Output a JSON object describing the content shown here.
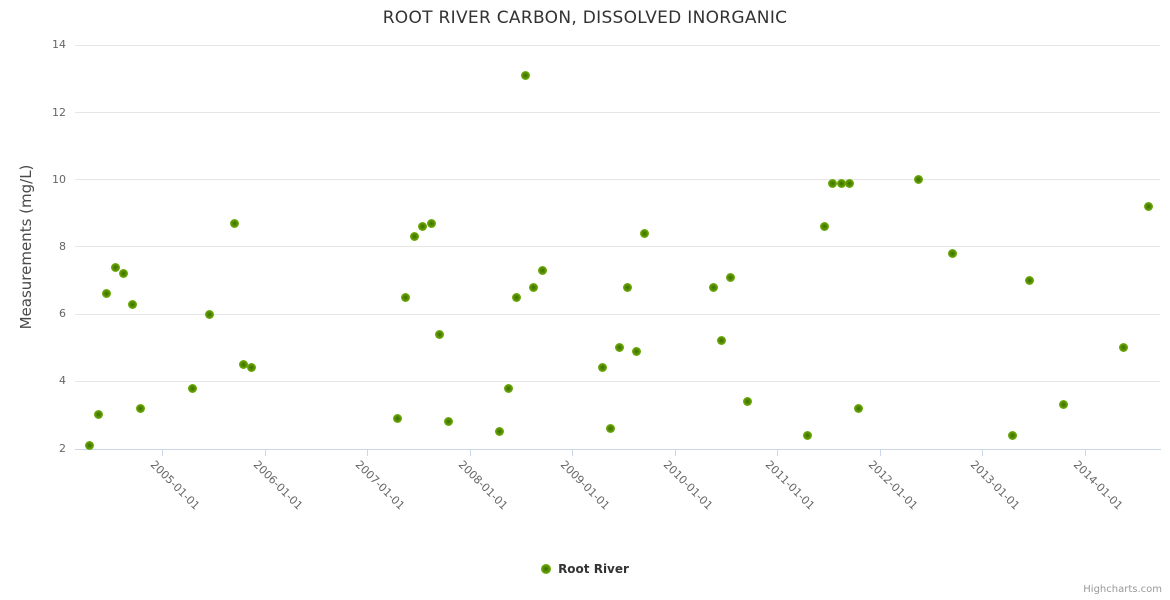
{
  "chart": {
    "title": "ROOT RIVER CARBON, DISSOLVED INORGANIC",
    "credits_label": "Highcharts.com"
  },
  "legend": {
    "label": "Root River"
  },
  "chart_data": {
    "type": "scatter",
    "title": "ROOT RIVER CARBON, DISSOLVED INORGANIC",
    "xlabel": "",
    "ylabel": "Measurements (mg/L)",
    "ylim": [
      2,
      14
    ],
    "yticks": [
      2,
      4,
      6,
      8,
      10,
      12,
      14
    ],
    "xtick_labels": [
      "2005-01-01",
      "2006-01-01",
      "2007-01-01",
      "2008-01-01",
      "2009-01-01",
      "2010-01-01",
      "2011-01-01",
      "2012-01-01",
      "2013-01-01",
      "2014-01-01"
    ],
    "grid": "horizontal-only",
    "legend_position": "bottom-center",
    "marker_color": "#74b010",
    "marker_center_color": "#3e6b02",
    "series": [
      {
        "name": "Root River",
        "points": [
          {
            "date": "2004-04",
            "value": 2.1
          },
          {
            "date": "2004-05",
            "value": 3.0
          },
          {
            "date": "2004-06",
            "value": 6.6
          },
          {
            "date": "2004-07",
            "value": 7.4
          },
          {
            "date": "2004-08",
            "value": 7.2
          },
          {
            "date": "2004-09",
            "value": 6.3
          },
          {
            "date": "2004-10",
            "value": 3.2
          },
          {
            "date": "2005-04",
            "value": 3.8
          },
          {
            "date": "2005-06",
            "value": 6.0
          },
          {
            "date": "2005-09",
            "value": 8.7
          },
          {
            "date": "2005-10",
            "value": 4.5
          },
          {
            "date": "2005-11",
            "value": 4.4
          },
          {
            "date": "2007-04",
            "value": 2.9
          },
          {
            "date": "2007-05",
            "value": 6.5
          },
          {
            "date": "2007-06",
            "value": 8.3
          },
          {
            "date": "2007-07",
            "value": 8.6
          },
          {
            "date": "2007-08",
            "value": 8.7
          },
          {
            "date": "2007-09",
            "value": 5.4
          },
          {
            "date": "2007-10",
            "value": 2.8
          },
          {
            "date": "2008-04",
            "value": 2.5
          },
          {
            "date": "2008-05",
            "value": 3.8
          },
          {
            "date": "2008-06",
            "value": 6.5
          },
          {
            "date": "2008-07",
            "value": 13.1
          },
          {
            "date": "2008-08",
            "value": 6.8
          },
          {
            "date": "2008-09",
            "value": 7.3
          },
          {
            "date": "2009-04",
            "value": 4.4
          },
          {
            "date": "2009-05",
            "value": 2.6
          },
          {
            "date": "2009-06",
            "value": 5.0
          },
          {
            "date": "2009-07",
            "value": 6.8
          },
          {
            "date": "2009-08",
            "value": 4.9
          },
          {
            "date": "2009-09",
            "value": 8.4
          },
          {
            "date": "2010-05",
            "value": 6.8
          },
          {
            "date": "2010-06",
            "value": 5.2
          },
          {
            "date": "2010-07",
            "value": 7.1
          },
          {
            "date": "2010-09",
            "value": 3.4
          },
          {
            "date": "2011-04",
            "value": 2.4
          },
          {
            "date": "2011-06",
            "value": 8.6
          },
          {
            "date": "2011-07",
            "value": 9.9
          },
          {
            "date": "2011-08",
            "value": 9.9
          },
          {
            "date": "2011-09",
            "value": 9.9
          },
          {
            "date": "2011-10",
            "value": 3.2
          },
          {
            "date": "2012-05",
            "value": 10.0
          },
          {
            "date": "2012-09",
            "value": 7.8
          },
          {
            "date": "2013-04",
            "value": 2.4
          },
          {
            "date": "2013-06",
            "value": 7.0
          },
          {
            "date": "2013-10",
            "value": 3.3
          },
          {
            "date": "2014-05",
            "value": 5.0
          },
          {
            "date": "2014-08",
            "value": 9.2
          }
        ]
      }
    ]
  }
}
